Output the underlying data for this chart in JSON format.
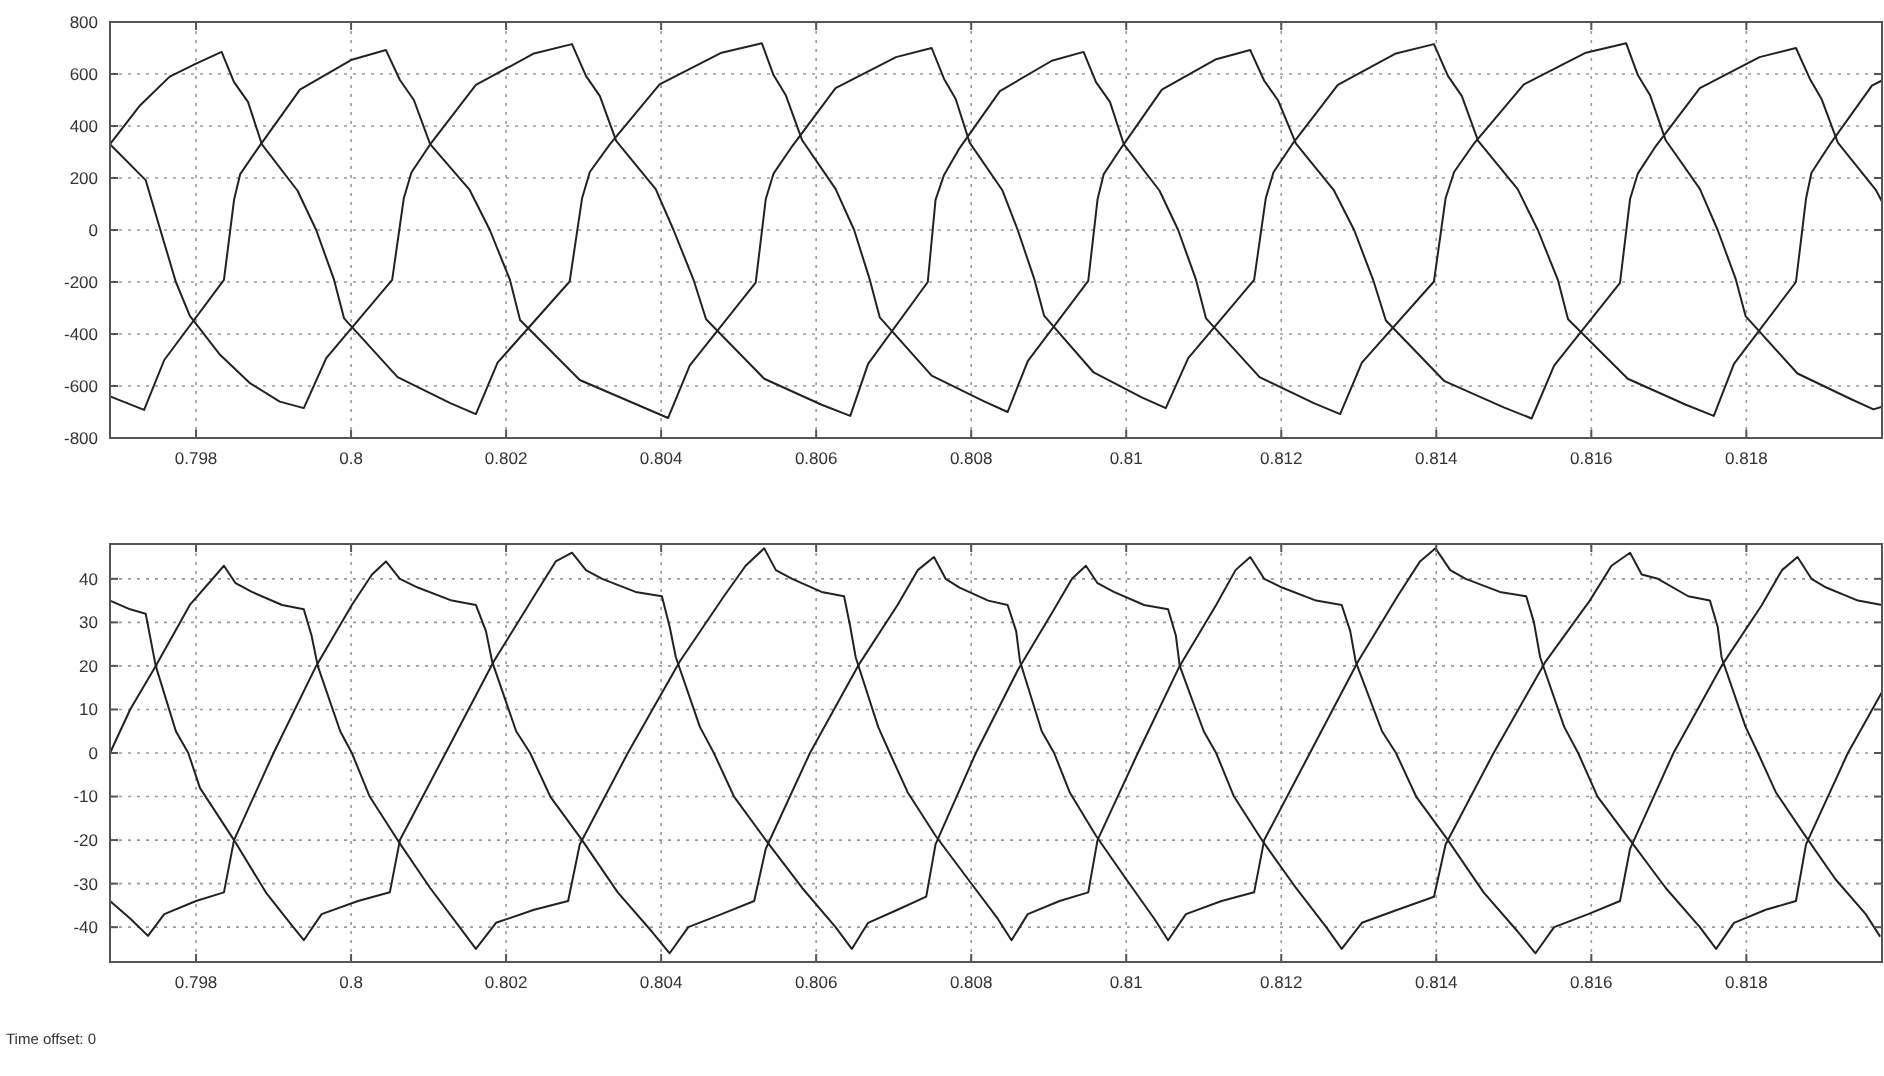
{
  "chart_data": [
    {
      "type": "line",
      "xlim": [
        0.79689,
        0.81975
      ],
      "xticks": [
        0.798,
        0.8,
        0.802,
        0.804,
        0.806,
        0.808,
        0.81,
        0.812,
        0.814,
        0.816,
        0.818
      ],
      "ylim": [
        -800,
        800
      ],
      "yticks": [
        -800,
        -600,
        -400,
        -200,
        0,
        200,
        400,
        600,
        800
      ],
      "grid": true,
      "series": [
        {
          "color": "#222222",
          "x": [
            0.79689,
            0.79728,
            0.79766,
            0.798,
            0.79833,
            0.79849,
            0.79867,
            0.79885,
            0.79931,
            0.79955,
            0.79978,
            0.79991,
            0.8006,
            0.80128,
            0.80161,
            0.80189,
            0.80282,
            0.80298,
            0.80308,
            0.80334,
            0.80398,
            0.80478,
            0.8053,
            0.80545,
            0.80561,
            0.80582,
            0.80625,
            0.80649,
            0.80669,
            0.80682,
            0.80749,
            0.80816,
            0.80847,
            0.80873,
            0.80951,
            0.80963,
            0.80971,
            0.80994,
            0.81046,
            0.81116,
            0.8116,
            0.81178,
            0.81196,
            0.81219,
            0.81268,
            0.81294,
            0.81319,
            0.81335,
            0.8141,
            0.81487,
            0.81523,
            0.81552,
            0.81637,
            0.8165,
            0.8166,
            0.81683,
            0.8174,
            0.81817,
            0.81864,
            0.81882,
            0.81897,
            0.81918,
            0.81967,
            0.81975
          ],
          "values": [
            330,
            480,
            590,
            640,
            685,
            569,
            493,
            329,
            151,
            0,
            -191,
            -340,
            -566,
            -666,
            -708,
            -510,
            -198,
            122,
            223,
            330,
            560,
            682,
            718,
            596,
            517,
            345,
            158,
            0,
            -189,
            -336,
            -560,
            -658,
            -700,
            -504,
            -196,
            118,
            215,
            318,
            540,
            657,
            692,
            574,
            498,
            332,
            152,
            0,
            -196,
            -348,
            -580,
            -682,
            -725,
            -522,
            -203,
            119,
            217,
            322,
            546,
            665,
            700,
            581,
            504,
            336,
            154,
            110
          ]
        },
        {
          "color": "#222222",
          "x": [
            0.79689,
            0.79733,
            0.79759,
            0.79836,
            0.79849,
            0.79857,
            0.7988,
            0.79934,
            0.80001,
            0.80045,
            0.80063,
            0.80081,
            0.80102,
            0.80153,
            0.80179,
            0.80205,
            0.80218,
            0.80295,
            0.80373,
            0.80409,
            0.80437,
            0.80522,
            0.80535,
            0.80545,
            0.80569,
            0.80625,
            0.80703,
            0.80749,
            0.80765,
            0.8078,
            0.80798,
            0.8084,
            0.8086,
            0.80881,
            0.80894,
            0.80958,
            0.8102,
            0.81051,
            0.8108,
            0.81165,
            0.8118,
            0.8119,
            0.81214,
            0.81273,
            0.81348,
            0.81397,
            0.81415,
            0.81433,
            0.81454,
            0.81505,
            0.81531,
            0.81557,
            0.8157,
            0.81647,
            0.81722,
            0.81758,
            0.81784,
            0.81864,
            0.81877,
            0.81884,
            0.81908,
            0.81962,
            0.81975
          ],
          "values": [
            -640,
            -692,
            -500,
            -192,
            115,
            215,
            315,
            540,
            655,
            692,
            577,
            500,
            330,
            154,
            0,
            -192,
            -346,
            -577,
            -677,
            -723,
            -521,
            -202,
            119,
            217,
            322,
            546,
            665,
            700,
            581,
            504,
            336,
            154,
            0,
            -185,
            -329,
            -548,
            -644,
            -685,
            -493,
            -192,
            122,
            222,
            329,
            558,
            679,
            715,
            593,
            515,
            343,
            157,
            0,
            -193,
            -343,
            -572,
            -672,
            -715,
            -515,
            -200,
            121,
            220,
            330,
            555,
            575
          ]
        },
        {
          "color": "#222222",
          "x": [
            0.79689,
            0.79735,
            0.79754,
            0.79774,
            0.79792,
            0.79831,
            0.7987,
            0.79908,
            0.79939,
            0.79968,
            0.80053,
            0.80068,
            0.80078,
            0.80102,
            0.80161,
            0.80236,
            0.80285,
            0.80303,
            0.80321,
            0.80342,
            0.80393,
            0.80416,
            0.80442,
            0.80458,
            0.80533,
            0.80607,
            0.80644,
            0.80667,
            0.80744,
            0.80754,
            0.80765,
            0.80785,
            0.80837,
            0.80904,
            0.80945,
            0.80961,
            0.80979,
            0.80997,
            0.81043,
            0.81067,
            0.8109,
            0.81103,
            0.81172,
            0.81242,
            0.81276,
            0.81304,
            0.81397,
            0.81412,
            0.81423,
            0.81448,
            0.81513,
            0.81593,
            0.81645,
            0.8166,
            0.81676,
            0.81696,
            0.8174,
            0.81763,
            0.81786,
            0.81799,
            0.81866,
            0.81934,
            0.81964,
            0.81975
          ],
          "values": [
            330,
            192,
            0,
            -200,
            -330,
            -480,
            -590,
            -660,
            -685,
            -493,
            -192,
            122,
            222,
            329,
            558,
            679,
            715,
            593,
            515,
            343,
            157,
            0,
            -193,
            -343,
            -572,
            -672,
            -715,
            -515,
            -200,
            116,
            212,
            315,
            534,
            651,
            685,
            569,
            493,
            329,
            151,
            0,
            -191,
            -340,
            -566,
            -666,
            -708,
            -510,
            -198,
            122,
            223,
            330,
            560,
            682,
            718,
            596,
            517,
            345,
            158,
            0,
            -186,
            -331,
            -552,
            -649,
            -690,
            -680
          ]
        }
      ]
    },
    {
      "type": "line",
      "xlim": [
        0.79689,
        0.81975
      ],
      "xticks": [
        0.798,
        0.8,
        0.802,
        0.804,
        0.806,
        0.808,
        0.81,
        0.812,
        0.814,
        0.816,
        0.818
      ],
      "ylim": [
        -48,
        48
      ],
      "yticks": [
        -40,
        -30,
        -20,
        -10,
        0,
        10,
        20,
        30,
        40
      ],
      "grid": true,
      "annotations": [
        "Time offset: 0"
      ],
      "series": [
        {
          "color": "#222222",
          "x": [
            0.79689,
            0.79715,
            0.79748,
            0.79792,
            0.79836,
            0.79851,
            0.79872,
            0.79911,
            0.79939,
            0.79949,
            0.79957,
            0.79986,
            0.80001,
            0.80024,
            0.8006,
            0.80102,
            0.8014,
            0.80161,
            0.80187,
            0.80236,
            0.8028,
            0.80295,
            0.80357,
            0.80424,
            0.80481,
            0.80509,
            0.80533,
            0.80548,
            0.80569,
            0.80607,
            0.80636,
            0.80644,
            0.80651,
            0.8068,
            0.80695,
            0.80718,
            0.80754,
            0.80796,
            0.80834,
            0.80852,
            0.80873,
            0.80914,
            0.80951,
            0.80963,
            0.81015,
            0.81069,
            0.81116,
            0.81141,
            0.8116,
            0.81178,
            0.81201,
            0.81245,
            0.81278,
            0.81289,
            0.81296,
            0.8133,
            0.81348,
            0.81374,
            0.81415,
            0.81461,
            0.81505,
            0.81528,
            0.81552,
            0.81596,
            0.81637,
            0.8165,
            0.81706,
            0.81768,
            0.8182,
            0.81846,
            0.81866,
            0.81884,
            0.81903,
            0.81944,
            0.81975
          ],
          "values": [
            0,
            10,
            20,
            34,
            43,
            39,
            37,
            34,
            33,
            27,
            20,
            5,
            0,
            -10,
            -20,
            -31,
            -40,
            -45,
            -39,
            -36,
            -34,
            -21,
            0,
            21,
            36,
            43,
            47,
            42,
            40,
            37,
            36,
            29,
            22,
            6,
            0,
            -9,
            -19,
            -29,
            -38,
            -43,
            -37,
            -34,
            -32,
            -20,
            0,
            20,
            34,
            42,
            45,
            40,
            38,
            35,
            34,
            28,
            21,
            5,
            0,
            -10,
            -20,
            -32,
            -41,
            -46,
            -40,
            -37,
            -34,
            -22,
            0,
            20,
            34,
            42,
            45,
            40,
            38,
            35,
            34
          ]
        },
        {
          "color": "#222222",
          "x": [
            0.79689,
            0.79715,
            0.79738,
            0.79759,
            0.798,
            0.79836,
            0.79849,
            0.799,
            0.79955,
            0.80001,
            0.80027,
            0.80045,
            0.80063,
            0.80086,
            0.8013,
            0.80161,
            0.80174,
            0.80182,
            0.80213,
            0.80231,
            0.80257,
            0.80298,
            0.80344,
            0.80388,
            0.80411,
            0.80435,
            0.80478,
            0.8052,
            0.80535,
            0.80592,
            0.80654,
            0.80705,
            0.80731,
            0.80752,
            0.80767,
            0.80785,
            0.80822,
            0.80847,
            0.80858,
            0.80863,
            0.80891,
            0.80907,
            0.80927,
            0.80961,
            0.81,
            0.81036,
            0.81054,
            0.81077,
            0.81123,
            0.81165,
            0.81178,
            0.81237,
            0.81299,
            0.8135,
            0.81379,
            0.81399,
            0.81418,
            0.81438,
            0.81482,
            0.81516,
            0.81526,
            0.81534,
            0.81565,
            0.81583,
            0.81608,
            0.8165,
            0.81696,
            0.8174,
            0.81761,
            0.81784,
            0.81825,
            0.81864,
            0.81877,
            0.81931,
            0.81975
          ],
          "values": [
            -34,
            -38,
            -42,
            -37,
            -34,
            -32,
            -20,
            0,
            20,
            34,
            41,
            44,
            40,
            38,
            35,
            34,
            28,
            21,
            5,
            0,
            -10,
            -20,
            -32,
            -41,
            -46,
            -40,
            -37,
            -34,
            -22,
            0,
            20,
            34,
            42,
            45,
            40,
            38,
            35,
            34,
            28,
            21,
            5,
            0,
            -9,
            -19,
            -29,
            -38,
            -43,
            -37,
            -34,
            -32,
            -20,
            0,
            21,
            36,
            44,
            47,
            42,
            40,
            37,
            36,
            30,
            22,
            6,
            0,
            -10,
            -20,
            -31,
            -40,
            -45,
            -39,
            -36,
            -34,
            -21,
            0,
            14
          ]
        },
        {
          "color": "#222222",
          "x": [
            0.79689,
            0.79715,
            0.79735,
            0.79748,
            0.79774,
            0.7979,
            0.79805,
            0.79849,
            0.7989,
            0.79921,
            0.79939,
            0.79962,
            0.80009,
            0.8005,
            0.80063,
            0.80122,
            0.80184,
            0.80236,
            0.80264,
            0.80285,
            0.80303,
            0.80324,
            0.80367,
            0.80401,
            0.80411,
            0.80419,
            0.8045,
            0.80468,
            0.80494,
            0.80535,
            0.80582,
            0.80625,
            0.80646,
            0.80667,
            0.80705,
            0.80742,
            0.80754,
            0.80806,
            0.8086,
            0.80907,
            0.8093,
            0.80948,
            0.80963,
            0.80984,
            0.81023,
            0.81054,
            0.81064,
            0.81069,
            0.811,
            0.81116,
            0.81139,
            0.81175,
            0.81219,
            0.81258,
            0.81278,
            0.81304,
            0.8135,
            0.81397,
            0.81412,
            0.81474,
            0.81541,
            0.81598,
            0.81626,
            0.8165,
            0.81665,
            0.81686,
            0.81725,
            0.81753,
            0.81763,
            0.81768,
            0.81799,
            0.81815,
            0.81838,
            0.81872,
            0.81915,
            0.81954,
            0.81972
          ],
          "values": [
            35,
            33,
            32,
            20,
            5,
            0,
            -8,
            -20,
            -32,
            -39,
            -43,
            -37,
            -34,
            -32,
            -20,
            0,
            21,
            36,
            44,
            46,
            42,
            40,
            37,
            36,
            29,
            22,
            6,
            0,
            -10,
            -20,
            -31,
            -40,
            -45,
            -39,
            -36,
            -33,
            -21,
            0,
            19,
            33,
            40,
            43,
            39,
            37,
            34,
            33,
            27,
            20,
            5,
            0,
            -10,
            -20,
            -31,
            -40,
            -45,
            -39,
            -36,
            -33,
            -21,
            0,
            21,
            35,
            43,
            46,
            41,
            40,
            36,
            35,
            29,
            22,
            6,
            0,
            -9,
            -18,
            -29,
            -37,
            -42
          ]
        }
      ]
    }
  ]
}
